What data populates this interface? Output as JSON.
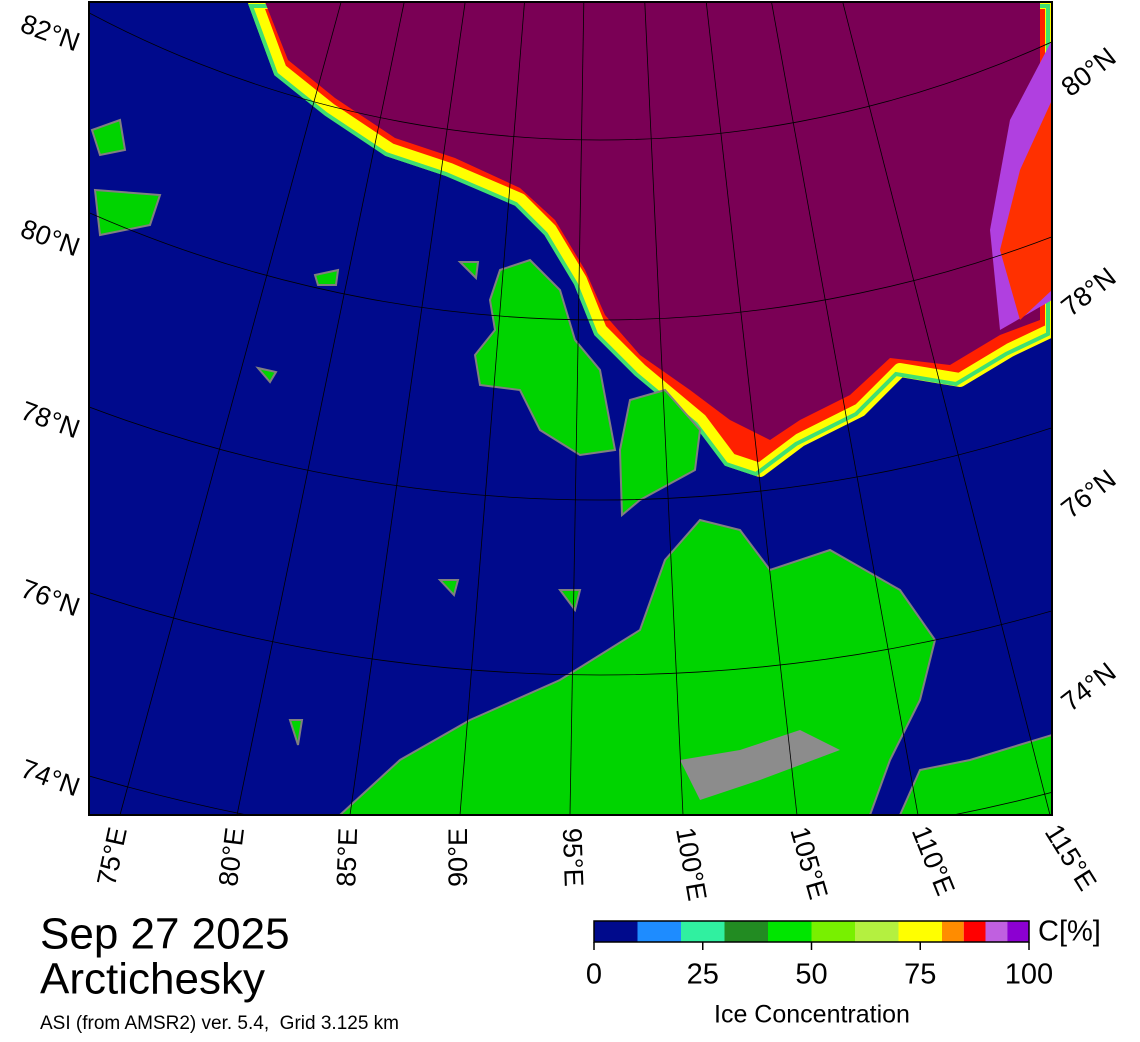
{
  "map": {
    "lat_labels_left": [
      "82°N",
      "80°N",
      "78°N",
      "76°N",
      "74°N"
    ],
    "lat_labels_right": [
      "80°N",
      "78°N",
      "76°N",
      "74°N"
    ],
    "lon_labels": [
      "75°E",
      "80°E",
      "85°E",
      "90°E",
      "95°E",
      "100°E",
      "105°E",
      "110°E",
      "115°E"
    ]
  },
  "caption": {
    "date": "Sep 27 2025",
    "region": "Arctichesky",
    "source": "ASI (from AMSR2) ver. 5.4,  Grid 3.125 km"
  },
  "colorbar": {
    "unit": "C[%]",
    "label": "Ice Concentration",
    "range": [
      0,
      100
    ],
    "ticks": [
      0,
      25,
      50,
      75,
      100
    ],
    "bins": [
      0,
      10,
      20,
      30,
      40,
      50,
      60,
      70,
      80,
      85,
      90,
      95,
      100
    ],
    "colors": [
      "#000a8c",
      "#1e8cff",
      "#30f0a0",
      "#228b22",
      "#00e600",
      "#78f000",
      "#b4f040",
      "#ffff00",
      "#ff8c00",
      "#ff0000",
      "#c060e0",
      "#8c00d2"
    ]
  }
}
